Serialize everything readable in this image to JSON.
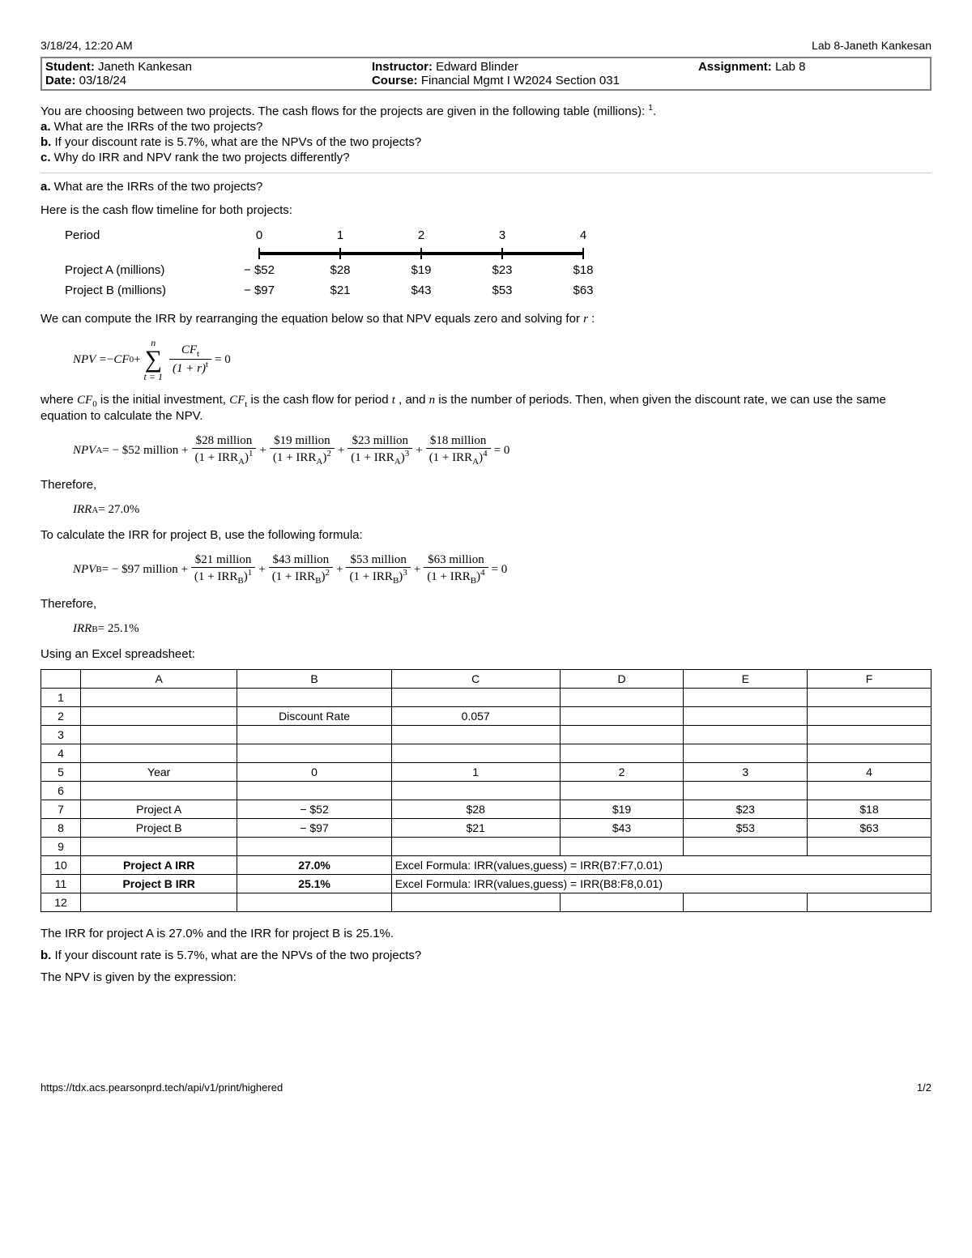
{
  "header": {
    "datetime": "3/18/24, 12:20 AM",
    "doc_title": "Lab 8-Janeth Kankesan"
  },
  "info": {
    "student_label": "Student:",
    "student": " Janeth Kankesan",
    "date_label": "Date:",
    "date": " 03/18/24",
    "instructor_label": "Instructor:",
    "instructor": " Edward Blinder",
    "course_label": "Course:",
    "course": " Financial Mgmt I W2024 Section 031",
    "assignment_label": "Assignment:",
    "assignment": " Lab 8"
  },
  "intro": {
    "line1_pre": "You are choosing between two projects. The cash flows for the projects are given in the following table (millions): ",
    "note_sup": "1",
    "line1_post": ".",
    "a_label": "a.",
    "a_text": " What are the IRRs of the two projects?",
    "b_label": "b.",
    "b_text": " If your discount rate is 5.7%, what are the NPVs of the two projects?",
    "c_label": "c.",
    "c_text": " Why do IRR and NPV rank the two projects differently?"
  },
  "partA": {
    "head_label": "a.",
    "head_text": " What are the IRRs of the two projects?",
    "timeline_intro": "Here is the cash flow timeline for both projects:",
    "period_label": "Period",
    "periods": [
      "0",
      "1",
      "2",
      "3",
      "4"
    ],
    "projA_label": "Project A (millions)",
    "projA": [
      "− $52",
      "$28",
      "$19",
      "$23",
      "$18"
    ],
    "projB_label": "Project B (millions)",
    "projB": [
      "− $97",
      "$21",
      "$43",
      "$53",
      "$63"
    ],
    "irr_explain_pre": "We can compute the IRR by rearranging the equation below so that NPV equals zero and solving for ",
    "irr_explain_var": "r",
    "irr_explain_post": " :",
    "npv_formula": {
      "lhs": "NPV = ",
      "neg": "− ",
      "cf0": "CF",
      "cf0_sub": "0",
      "plus": " + ",
      "sum_upper": "n",
      "sum_lower": "t = 1",
      "num": "CF",
      "num_sub": "t",
      "den_pre": "(1 + r)",
      "den_sup": "t",
      "eq0": " = 0"
    },
    "where_p1": "where ",
    "where_cf0": "CF",
    "where_cf0_sub": "0",
    "where_p2": " is the initial investment, ",
    "where_cft": "CF",
    "where_cft_sub": "t",
    "where_p3": " is the cash flow for period ",
    "where_t": "t",
    "where_p4": " , and ",
    "where_n": "n",
    "where_p5": "  is the number of periods. Then, when given the discount rate, we can use the same equation to calculate the NPV.",
    "npvA": {
      "lhs": "NPV",
      "lhs_sub": "A",
      "eq": "  =  − $52 million + ",
      "f1n": "$28 million",
      "f2n": "$19 million",
      "f3n": "$23 million",
      "f4n": "$18 million",
      "den_pre": "(1 + IRR",
      "den_sub": "A",
      "den_post": ")",
      "p1": "1",
      "p2": "2",
      "p3": "3",
      "p4": "4",
      "plus": " + ",
      "eq0": " = 0"
    },
    "therefore": "Therefore,",
    "irrA_lhs": "IRR",
    "irrA_sub": "A",
    "irrA_val": " = 27.0%",
    "calcB_intro": "To calculate the IRR for project B, use the following formula:",
    "npvB": {
      "lhs": "NPV",
      "lhs_sub": "B",
      "eq": "  =  − $97 million + ",
      "f1n": "$21 million",
      "f2n": "$43 million",
      "f3n": "$53 million",
      "f4n": "$63 million",
      "den_pre": "(1 + IRR",
      "den_sub": "B",
      "den_post": ")",
      "p1": "1",
      "p2": "2",
      "p3": "3",
      "p4": "4",
      "plus": " + ",
      "eq0": " = 0"
    },
    "irrB_lhs": "IRR",
    "irrB_sub": "B",
    "irrB_val": " = 25.1%",
    "excel_intro": "Using an Excel spreadsheet:"
  },
  "spreadsheet": {
    "cols": [
      "",
      "A",
      "B",
      "C",
      "D",
      "E",
      "F"
    ],
    "rows": [
      {
        "n": "1",
        "c": [
          "",
          "",
          "",
          "",
          "",
          ""
        ]
      },
      {
        "n": "2",
        "c": [
          "",
          "Discount Rate",
          "0.057",
          "",
          "",
          ""
        ]
      },
      {
        "n": "3",
        "c": [
          "",
          "",
          "",
          "",
          "",
          ""
        ]
      },
      {
        "n": "4",
        "c": [
          "",
          "",
          "",
          "",
          "",
          ""
        ]
      },
      {
        "n": "5",
        "c": [
          "Year",
          "0",
          "1",
          "2",
          "3",
          "4"
        ]
      },
      {
        "n": "6",
        "c": [
          "",
          "",
          "",
          "",
          "",
          ""
        ]
      },
      {
        "n": "7",
        "c": [
          "Project A",
          "− $52",
          "$28",
          "$19",
          "$23",
          "$18"
        ]
      },
      {
        "n": "8",
        "c": [
          "Project B",
          "− $97",
          "$21",
          "$43",
          "$53",
          "$63"
        ]
      },
      {
        "n": "9",
        "c": [
          "",
          "",
          "",
          "",
          "",
          ""
        ]
      }
    ],
    "row10": {
      "n": "10",
      "a": "Project A IRR",
      "b": "27.0%",
      "merge": "Excel Formula:  IRR(values,guess) = IRR(B7:F7,0.01)"
    },
    "row11": {
      "n": "11",
      "a": "Project B IRR",
      "b": "25.1%",
      "merge": "Excel Formula:  IRR(values,guess) = IRR(B8:F8,0.01)"
    },
    "row12": {
      "n": "12",
      "c": [
        "",
        "",
        "",
        "",
        "",
        ""
      ]
    }
  },
  "conclusion": {
    "irr_summary": "The IRR for project A is 27.0% and the IRR for project B is 25.1%.",
    "b_label": "b.",
    "b_text": " If your discount rate is 5.7%, what are the NPVs of the two projects?",
    "npv_intro": "The NPV is given by the expression:"
  },
  "footer": {
    "url": "https://tdx.acs.pearsonprd.tech/api/v1/print/highered",
    "page": "1/2"
  }
}
